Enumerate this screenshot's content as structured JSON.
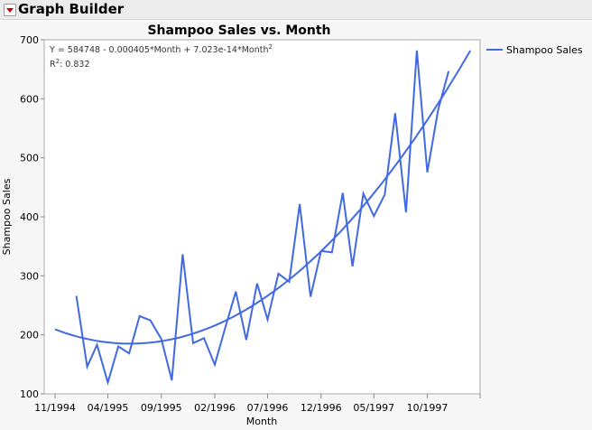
{
  "header": {
    "title": "Graph Builder"
  },
  "chart_data": {
    "type": "line",
    "title": "Shampoo Sales vs. Month",
    "xlabel": "Month",
    "ylabel": "Shampoo Sales",
    "xlim": [
      "1994-10-01",
      "1998-03-01"
    ],
    "ylim": [
      100,
      700
    ],
    "x_ticks": [
      "11/1994",
      "04/1995",
      "09/1995",
      "02/1996",
      "07/1996",
      "12/1996",
      "05/1997",
      "10/1997"
    ],
    "x_tick_dates": [
      "1994-11-01",
      "1995-04-01",
      "1995-09-01",
      "1996-02-01",
      "1996-07-01",
      "1996-12-01",
      "1997-05-01",
      "1997-10-01"
    ],
    "y_ticks": [
      100,
      200,
      300,
      400,
      500,
      600,
      700
    ],
    "legend": {
      "position": "right",
      "entries": [
        "Shampoo Sales"
      ]
    },
    "series": [
      {
        "name": "Shampoo Sales",
        "color": "#4169e1",
        "x": [
          "1995-01",
          "1995-02",
          "1995-03",
          "1995-04",
          "1995-05",
          "1995-06",
          "1995-07",
          "1995-08",
          "1995-09",
          "1995-10",
          "1995-11",
          "1995-12",
          "1996-01",
          "1996-02",
          "1996-03",
          "1996-04",
          "1996-05",
          "1996-06",
          "1996-07",
          "1996-08",
          "1996-09",
          "1996-10",
          "1996-11",
          "1996-12",
          "1997-01",
          "1997-02",
          "1997-03",
          "1997-04",
          "1997-05",
          "1997-06",
          "1997-07",
          "1997-08",
          "1997-09",
          "1997-10",
          "1997-11",
          "1997-12"
        ],
        "values": [
          266.0,
          145.9,
          183.1,
          119.3,
          180.3,
          168.5,
          231.8,
          224.5,
          192.8,
          122.9,
          336.5,
          185.9,
          194.3,
          149.5,
          210.1,
          273.3,
          191.4,
          287.0,
          226.0,
          303.6,
          289.9,
          421.6,
          264.5,
          342.3,
          339.7,
          440.4,
          315.9,
          439.3,
          401.3,
          437.4,
          575.5,
          407.6,
          682.0,
          475.3,
          581.3,
          646.9
        ]
      }
    ],
    "fit": {
      "type": "quadratic",
      "equation": "Y = 584748 - 0.000405*Month + 7.023e-14*Month",
      "equation_exp": "2",
      "r2_label": "R",
      "r2_exp": "2",
      "r2_value": ": 0.832",
      "range": [
        "1994-11-01",
        "1998-02-01"
      ]
    },
    "grid": false
  }
}
